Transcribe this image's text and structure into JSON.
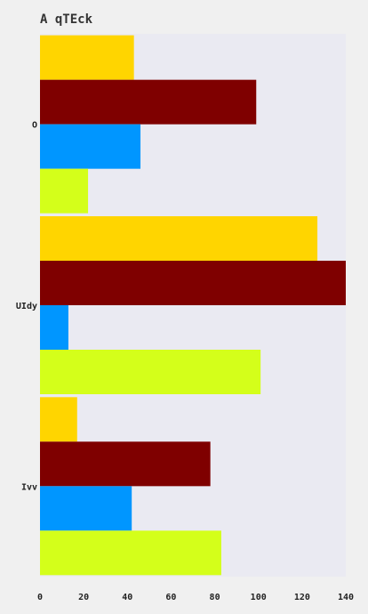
{
  "chart_data": {
    "type": "bar",
    "orientation": "horizontal",
    "title": "A qTEck",
    "xlabel": "",
    "ylabel": "",
    "categories": [
      "O",
      "UIdy",
      "Ivv"
    ],
    "xlim": [
      0,
      140
    ],
    "xticks": [
      0,
      20,
      40,
      60,
      80,
      100,
      120,
      140
    ],
    "grid": false,
    "legend": "none",
    "series": [
      {
        "color": "#FFD500",
        "values": [
          43,
          127,
          17
        ]
      },
      {
        "color": "#7F0000",
        "values": [
          99,
          140,
          78
        ]
      },
      {
        "color": "#0096FF",
        "values": [
          46,
          13,
          42
        ]
      },
      {
        "color": "#D4FF1A",
        "values": [
          22,
          101,
          83
        ]
      }
    ]
  }
}
